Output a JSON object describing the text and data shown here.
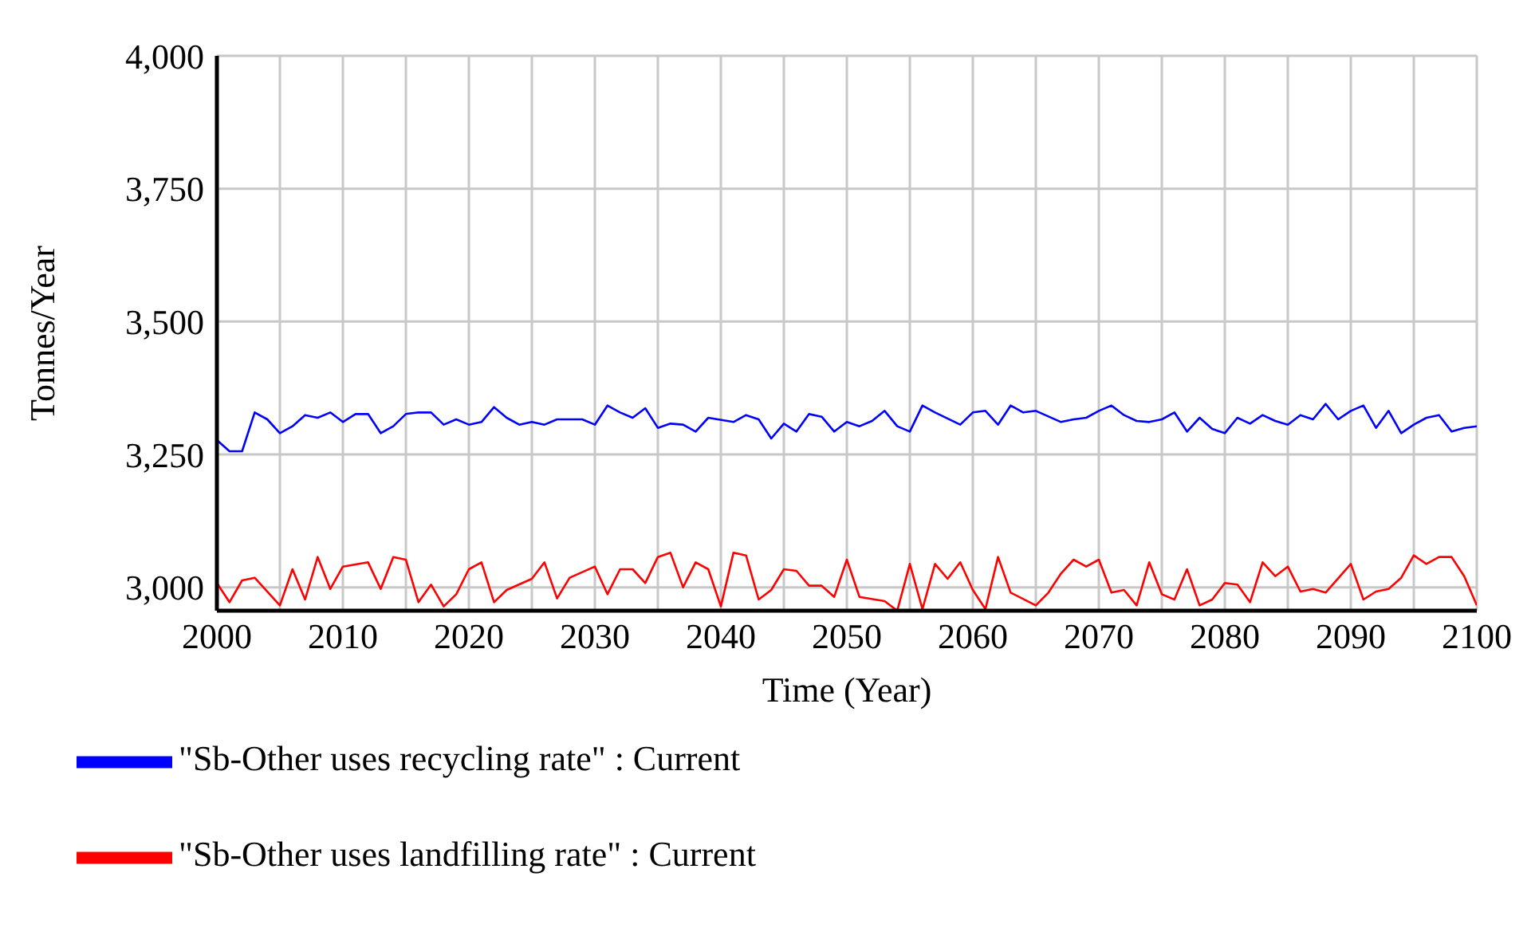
{
  "chart_data": {
    "type": "line",
    "xlabel": "Time (Year)",
    "ylabel": "Tonnes/Year",
    "xlim": [
      2000,
      2100
    ],
    "xticks": [
      2000,
      {
        "value": 2005,
        "label": null
      },
      2010,
      {
        "value": 2015,
        "label": null
      },
      2020,
      {
        "value": 2025,
        "label": null
      },
      2030,
      {
        "value": 2035,
        "label": null
      },
      2040,
      {
        "value": 2045,
        "label": null
      },
      2050,
      {
        "value": 2055,
        "label": null
      },
      2060,
      {
        "value": 2065,
        "label": null
      },
      2070,
      {
        "value": 2075,
        "label": null
      },
      2080,
      {
        "value": 2085,
        "label": null
      },
      2090,
      {
        "value": 2095,
        "label": null
      },
      2100
    ],
    "ylim": [
      2956,
      4000
    ],
    "yticks": [
      {
        "value": 3000,
        "label": "3,000"
      },
      {
        "value": 3250,
        "label": "3,250"
      },
      {
        "value": 3500,
        "label": "3,500"
      },
      {
        "value": 3750,
        "label": "3,750"
      },
      {
        "value": 4000,
        "label": "4,000"
      }
    ],
    "grid": true,
    "legend": "bottom",
    "line_style": "solid",
    "series": [
      {
        "name": "\"Sb-Other uses recycling rate\" : Current",
        "color": "#0000ff",
        "x": [
          2000,
          2001,
          2002,
          2003,
          2004,
          2005,
          2006,
          2007,
          2008,
          2009,
          2010,
          2011,
          2012,
          2013,
          2014,
          2015,
          2016,
          2017,
          2018,
          2019,
          2020,
          2021,
          2022,
          2023,
          2024,
          2025,
          2026,
          2027,
          2029,
          2030,
          2031,
          2032,
          2033,
          2034,
          2035,
          2036,
          2037,
          2038,
          2039,
          2041,
          2042,
          2043,
          2044,
          2045,
          2046,
          2047,
          2048,
          2049,
          2050,
          2051,
          2052,
          2053,
          2054,
          2055,
          2056,
          2057,
          2059,
          2060,
          2061,
          2062,
          2063,
          2064,
          2065,
          2067,
          2068,
          2069,
          2070,
          2071,
          2072,
          2073,
          2074,
          2075,
          2076,
          2077,
          2078,
          2079,
          2080,
          2081,
          2082,
          2083,
          2084,
          2085,
          2086,
          2087,
          2088,
          2089,
          2090,
          2091,
          2092,
          2093,
          2094,
          2095,
          2096,
          2097,
          2098,
          2099,
          2100
        ],
        "values": [
          3277,
          3256,
          3256,
          3329,
          3316,
          3290,
          3303,
          3324,
          3319,
          3329,
          3311,
          3326,
          3326,
          3290,
          3303,
          3326,
          3329,
          3329,
          3306,
          3316,
          3306,
          3311,
          3339,
          3319,
          3306,
          3311,
          3306,
          3316,
          3316,
          3306,
          3342,
          3329,
          3319,
          3337,
          3300,
          3308,
          3306,
          3293,
          3319,
          3311,
          3324,
          3316,
          3280,
          3308,
          3293,
          3326,
          3321,
          3293,
          3311,
          3303,
          3313,
          3332,
          3303,
          3293,
          3342,
          3329,
          3306,
          3329,
          3332,
          3306,
          3342,
          3329,
          3332,
          3311,
          3316,
          3319,
          3332,
          3342,
          3324,
          3313,
          3311,
          3316,
          3329,
          3293,
          3319,
          3298,
          3290,
          3319,
          3308,
          3324,
          3313,
          3306,
          3324,
          3316,
          3345,
          3316,
          3332,
          3342,
          3300,
          3332,
          3290,
          3306,
          3319,
          3324,
          3293,
          3300,
          3303
        ]
      },
      {
        "name": "\"Sb-Other uses landfilling rate\" : Current",
        "color": "#ff0000",
        "x": [
          2000,
          2001,
          2002,
          2003,
          2005,
          2006,
          2007,
          2008,
          2009,
          2010,
          2012,
          2013,
          2014,
          2015,
          2016,
          2017,
          2018,
          2019,
          2020,
          2021,
          2022,
          2023,
          2025,
          2026,
          2027,
          2028,
          2030,
          2031,
          2032,
          2033,
          2034,
          2035,
          2036,
          2037,
          2038,
          2039,
          2040,
          2041,
          2042,
          2043,
          2044,
          2045,
          2046,
          2047,
          2048,
          2049,
          2050,
          2051,
          2053,
          2054,
          2055,
          2056,
          2057,
          2058,
          2059,
          2060,
          2061,
          2062,
          2063,
          2065,
          2066,
          2067,
          2068,
          2069,
          2070,
          2071,
          2072,
          2073,
          2074,
          2075,
          2076,
          2077,
          2078,
          2079,
          2080,
          2081,
          2082,
          2083,
          2084,
          2085,
          2086,
          2087,
          2088,
          2090,
          2091,
          2092,
          2093,
          2094,
          2095,
          2096,
          2097,
          2098,
          2099,
          2100
        ],
        "values": [
          3008,
          2972,
          3013,
          3018,
          2966,
          3034,
          2977,
          3057,
          2997,
          3039,
          3047,
          2997,
          3057,
          3052,
          2972,
          3005,
          2964,
          2987,
          3034,
          3047,
          2972,
          2995,
          3016,
          3047,
          2979,
          3018,
          3039,
          2987,
          3034,
          3034,
          3008,
          3057,
          3065,
          3000,
          3047,
          3034,
          2964,
          3065,
          3060,
          2977,
          2995,
          3034,
          3031,
          3003,
          3003,
          2982,
          3052,
          2982,
          2974,
          2956,
          3044,
          2959,
          3044,
          3016,
          3047,
          2995,
          2959,
          3057,
          2990,
          2966,
          2990,
          3026,
          3052,
          3039,
          3052,
          2990,
          2995,
          2966,
          3047,
          2987,
          2977,
          3034,
          2966,
          2977,
          3008,
          3005,
          2972,
          3047,
          3021,
          3039,
          2992,
          2997,
          2990,
          3044,
          2977,
          2992,
          2997,
          3018,
          3060,
          3044,
          3057,
          3057,
          3021,
          2966
        ]
      }
    ]
  }
}
